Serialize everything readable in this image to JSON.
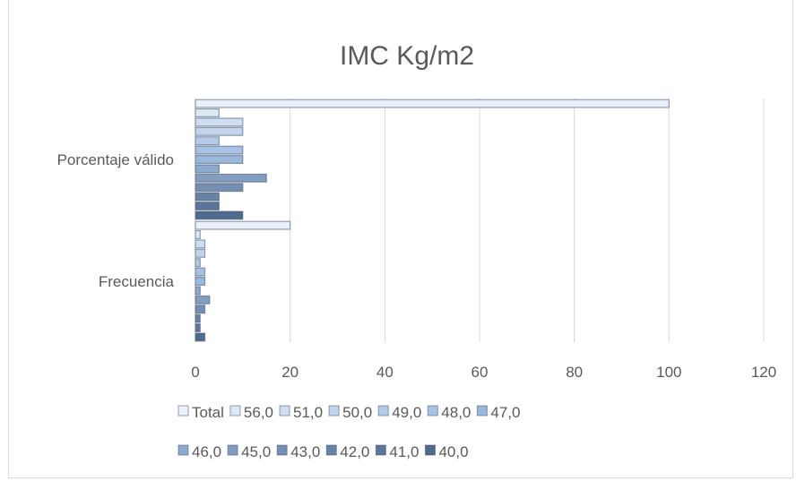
{
  "chart_data": {
    "type": "bar",
    "orientation": "horizontal",
    "title": "IMC Kg/m2",
    "categories": [
      "Frecuencia",
      "Porcentaje válido"
    ],
    "xlim": [
      0,
      120
    ],
    "xticks": [
      0,
      20,
      40,
      60,
      80,
      100,
      120
    ],
    "grid": true,
    "legend_position": "bottom",
    "series": [
      {
        "name": "40,0",
        "values": [
          2,
          10
        ],
        "color": "#4e6a8d"
      },
      {
        "name": "41,0",
        "values": [
          1,
          5
        ],
        "color": "#5b7699"
      },
      {
        "name": "42,0",
        "values": [
          1,
          5
        ],
        "color": "#6882a6"
      },
      {
        "name": "43,0",
        "values": [
          2,
          10
        ],
        "color": "#758fb3"
      },
      {
        "name": "45,0",
        "values": [
          3,
          15
        ],
        "color": "#829dc0"
      },
      {
        "name": "46,0",
        "values": [
          1,
          5
        ],
        "color": "#8eaace"
      },
      {
        "name": "47,0",
        "values": [
          2,
          10
        ],
        "color": "#9ab7dc"
      },
      {
        "name": "48,0",
        "values": [
          2,
          10
        ],
        "color": "#a6c2e4"
      },
      {
        "name": "49,0",
        "values": [
          1,
          5
        ],
        "color": "#b3cbe8"
      },
      {
        "name": "50,0",
        "values": [
          2,
          10
        ],
        "color": "#c1d4ec"
      },
      {
        "name": "51,0",
        "values": [
          2,
          10
        ],
        "color": "#cfdef1"
      },
      {
        "name": "56,0",
        "values": [
          1,
          5
        ],
        "color": "#dde8f5"
      },
      {
        "name": "Total",
        "values": [
          20,
          100
        ],
        "color": "#eaf1fa"
      }
    ],
    "legend_order": [
      "Total",
      "56,0",
      "51,0",
      "50,0",
      "49,0",
      "48,0",
      "47,0",
      "46,0",
      "45,0",
      "43,0",
      "42,0",
      "41,0",
      "40,0"
    ]
  }
}
